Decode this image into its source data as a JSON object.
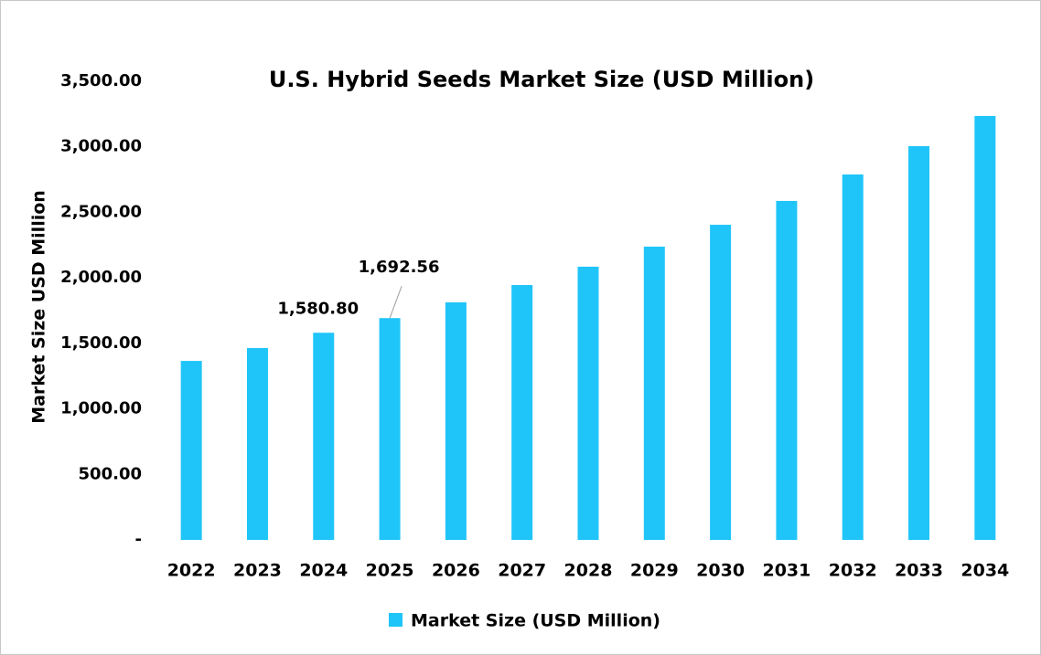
{
  "chart_data": {
    "type": "bar",
    "title": "U.S. Hybrid Seeds Market Size (USD Million)",
    "y_label": "Market Size USD Million",
    "categories": [
      "2022",
      "2023",
      "2024",
      "2025",
      "2026",
      "2027",
      "2028",
      "2029",
      "2030",
      "2031",
      "2032",
      "2033",
      "2034"
    ],
    "series": [
      {
        "name": "Market Size (USD Million)",
        "color": "#1fc5f9",
        "values": [
          1366,
          1464,
          1580.8,
          1692.56,
          1813,
          1945,
          2085,
          2238,
          2405,
          2587,
          2789,
          3005,
          3235
        ],
        "value_labels": [
          null,
          null,
          "1,580.80",
          "1,692.56",
          null,
          null,
          null,
          null,
          null,
          null,
          null,
          null,
          null
        ]
      }
    ],
    "ylim": [
      0,
      3500
    ],
    "yticks": [
      {
        "value": 0,
        "label": "-"
      },
      {
        "value": 500,
        "label": "500.00"
      },
      {
        "value": 1000,
        "label": "1,000.00"
      },
      {
        "value": 1500,
        "label": "1,500.00"
      },
      {
        "value": 2000,
        "label": "2,000.00"
      },
      {
        "value": 2500,
        "label": "2,500.00"
      },
      {
        "value": 3000,
        "label": "3,000.00"
      },
      {
        "value": 3500,
        "label": "3,500.00"
      }
    ],
    "grid": false
  }
}
